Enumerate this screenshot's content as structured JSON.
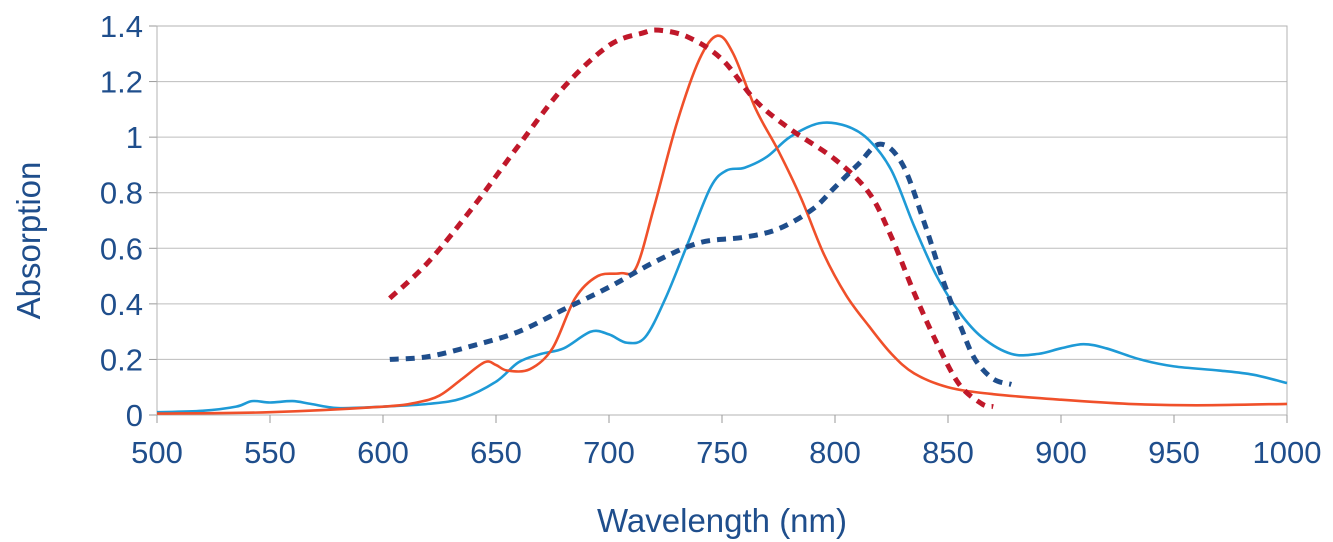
{
  "chart_data": {
    "type": "line",
    "xlabel": "Wavelength (nm)",
    "ylabel": "Absorption",
    "xlim": [
      500,
      1000
    ],
    "ylim": [
      0,
      1.4
    ],
    "x_ticks": [
      500,
      550,
      600,
      650,
      700,
      750,
      800,
      850,
      900,
      950,
      1000
    ],
    "y_ticks": [
      0,
      0.2,
      0.4,
      0.6,
      0.8,
      1,
      1.2,
      1.4
    ],
    "y_tick_labels": [
      "0",
      "0.2",
      "0.4",
      "0.6",
      "0.8",
      "1",
      "1.2",
      "1.4"
    ],
    "grid": "horizontal",
    "legend": "none",
    "series": [
      {
        "color": "#1e9ad6",
        "style": "solid",
        "points": [
          [
            500,
            0.01
          ],
          [
            520,
            0.015
          ],
          [
            535,
            0.03
          ],
          [
            542,
            0.05
          ],
          [
            550,
            0.045
          ],
          [
            560,
            0.05
          ],
          [
            568,
            0.04
          ],
          [
            580,
            0.025
          ],
          [
            600,
            0.03
          ],
          [
            620,
            0.04
          ],
          [
            635,
            0.06
          ],
          [
            650,
            0.12
          ],
          [
            660,
            0.19
          ],
          [
            670,
            0.22
          ],
          [
            680,
            0.24
          ],
          [
            692,
            0.3
          ],
          [
            700,
            0.29
          ],
          [
            708,
            0.26
          ],
          [
            716,
            0.28
          ],
          [
            725,
            0.42
          ],
          [
            735,
            0.62
          ],
          [
            745,
            0.82
          ],
          [
            752,
            0.88
          ],
          [
            760,
            0.89
          ],
          [
            770,
            0.93
          ],
          [
            780,
            1.0
          ],
          [
            793,
            1.05
          ],
          [
            805,
            1.04
          ],
          [
            815,
            0.99
          ],
          [
            825,
            0.88
          ],
          [
            835,
            0.68
          ],
          [
            845,
            0.5
          ],
          [
            855,
            0.37
          ],
          [
            865,
            0.28
          ],
          [
            878,
            0.22
          ],
          [
            890,
            0.22
          ],
          [
            900,
            0.24
          ],
          [
            910,
            0.255
          ],
          [
            920,
            0.24
          ],
          [
            935,
            0.2
          ],
          [
            950,
            0.175
          ],
          [
            970,
            0.16
          ],
          [
            985,
            0.145
          ],
          [
            1000,
            0.115
          ]
        ]
      },
      {
        "color": "#f0502a",
        "style": "solid",
        "points": [
          [
            500,
            0.005
          ],
          [
            550,
            0.01
          ],
          [
            600,
            0.03
          ],
          [
            615,
            0.045
          ],
          [
            625,
            0.07
          ],
          [
            635,
            0.13
          ],
          [
            645,
            0.19
          ],
          [
            650,
            0.18
          ],
          [
            655,
            0.16
          ],
          [
            665,
            0.165
          ],
          [
            675,
            0.24
          ],
          [
            685,
            0.42
          ],
          [
            695,
            0.5
          ],
          [
            705,
            0.51
          ],
          [
            712,
            0.53
          ],
          [
            720,
            0.75
          ],
          [
            730,
            1.05
          ],
          [
            740,
            1.28
          ],
          [
            748,
            1.365
          ],
          [
            755,
            1.3
          ],
          [
            765,
            1.1
          ],
          [
            775,
            0.95
          ],
          [
            785,
            0.78
          ],
          [
            795,
            0.58
          ],
          [
            805,
            0.43
          ],
          [
            815,
            0.32
          ],
          [
            825,
            0.22
          ],
          [
            835,
            0.15
          ],
          [
            850,
            0.1
          ],
          [
            870,
            0.075
          ],
          [
            900,
            0.055
          ],
          [
            930,
            0.04
          ],
          [
            960,
            0.035
          ],
          [
            1000,
            0.04
          ]
        ]
      },
      {
        "color": "#c0182a",
        "style": "dashed",
        "points": [
          [
            603,
            0.42
          ],
          [
            620,
            0.55
          ],
          [
            640,
            0.75
          ],
          [
            660,
            0.97
          ],
          [
            680,
            1.18
          ],
          [
            700,
            1.33
          ],
          [
            715,
            1.375
          ],
          [
            722,
            1.385
          ],
          [
            735,
            1.36
          ],
          [
            750,
            1.28
          ],
          [
            765,
            1.13
          ],
          [
            780,
            1.03
          ],
          [
            800,
            0.92
          ],
          [
            815,
            0.8
          ],
          [
            825,
            0.64
          ],
          [
            835,
            0.44
          ],
          [
            845,
            0.26
          ],
          [
            855,
            0.11
          ],
          [
            865,
            0.04
          ],
          [
            870,
            0.03
          ]
        ]
      },
      {
        "color": "#1f4e8c",
        "style": "dashed",
        "points": [
          [
            603,
            0.2
          ],
          [
            620,
            0.21
          ],
          [
            640,
            0.25
          ],
          [
            660,
            0.3
          ],
          [
            680,
            0.38
          ],
          [
            700,
            0.46
          ],
          [
            720,
            0.55
          ],
          [
            740,
            0.62
          ],
          [
            760,
            0.64
          ],
          [
            775,
            0.67
          ],
          [
            790,
            0.74
          ],
          [
            800,
            0.82
          ],
          [
            810,
            0.9
          ],
          [
            820,
            0.975
          ],
          [
            830,
            0.9
          ],
          [
            840,
            0.68
          ],
          [
            848,
            0.48
          ],
          [
            856,
            0.31
          ],
          [
            862,
            0.2
          ],
          [
            870,
            0.13
          ],
          [
            878,
            0.11
          ]
        ]
      }
    ]
  }
}
